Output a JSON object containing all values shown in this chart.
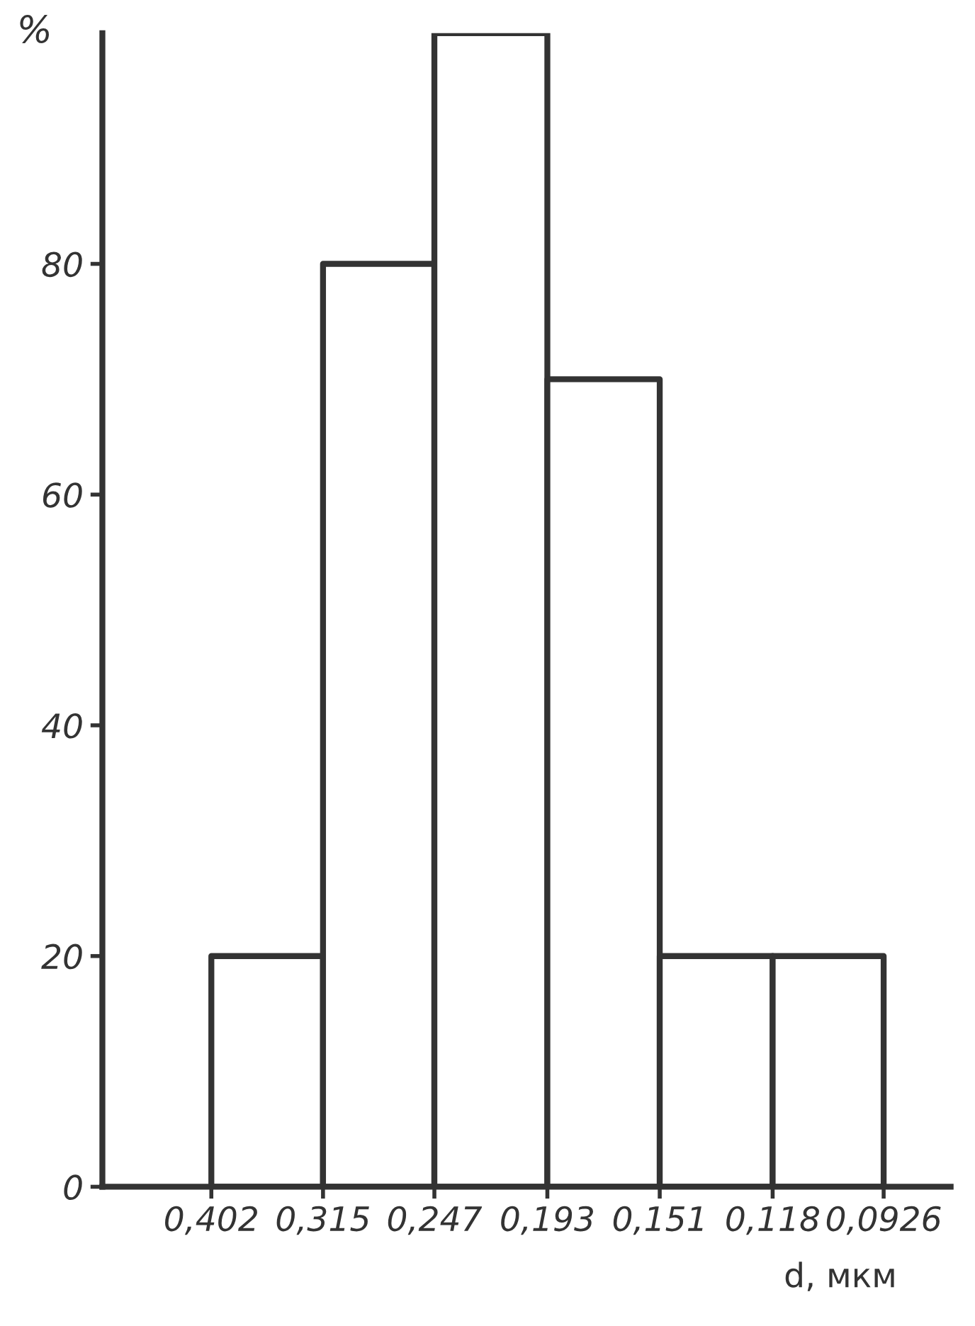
{
  "chart_data": {
    "type": "histogram",
    "xlabel": "d, мкм",
    "ylabel": "%",
    "bins": [
      0.402,
      0.315,
      0.247,
      0.193,
      0.151,
      0.118,
      0.0926
    ],
    "values": [
      20,
      80,
      100,
      70,
      20,
      20
    ],
    "xticks": [
      {
        "value": 0.402,
        "label": "0,402"
      },
      {
        "value": 0.315,
        "label": "0,315"
      },
      {
        "value": 0.247,
        "label": "0,247"
      },
      {
        "value": 0.193,
        "label": "0,193"
      },
      {
        "value": 0.151,
        "label": "0,151"
      },
      {
        "value": 0.118,
        "label": "0,118"
      },
      {
        "value": 0.0926,
        "label": "0,0926"
      }
    ],
    "log": "x",
    "xlim": [
      0.51,
      0.08
    ],
    "ylim": [
      0,
      100
    ],
    "yticks": [
      0,
      20,
      40,
      60,
      80
    ],
    "color": "#ffffff",
    "grid": false,
    "legend": false
  }
}
